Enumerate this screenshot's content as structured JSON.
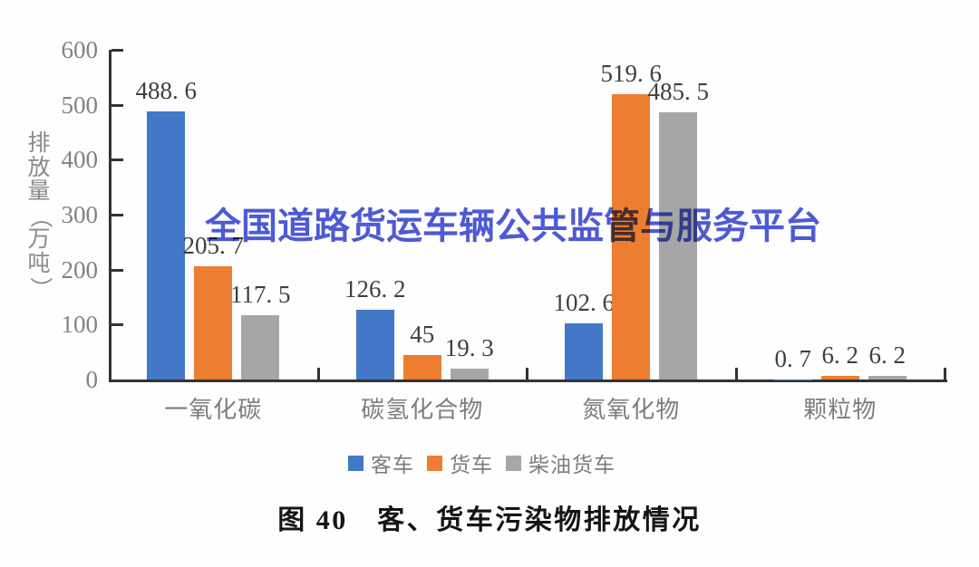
{
  "watermark": {
    "text": "全国道路货运车辆公共监管与服务平台",
    "color": "#3E4CD3"
  },
  "caption": {
    "text": "图 40　客、货车污染物排放情况"
  },
  "chart_data": {
    "type": "bar",
    "title": "",
    "xlabel": "",
    "ylabel": "排放量（万吨）",
    "categories": [
      "一氧化碳",
      "碳氢化合物",
      "氮氧化物",
      "颗粒物"
    ],
    "series": [
      {
        "name": "客车",
        "color": "#4377C8",
        "values": [
          488.6,
          126.2,
          102.6,
          0.7
        ]
      },
      {
        "name": "货车",
        "color": "#ED7D31",
        "values": [
          205.7,
          45,
          519.6,
          6.2
        ]
      },
      {
        "name": "柴油货车",
        "color": "#A6A6A6",
        "values": [
          117.5,
          19.3,
          485.5,
          6.2
        ]
      }
    ],
    "data_labels": [
      [
        "488. 6",
        "126. 2",
        "102. 6",
        "0. 7"
      ],
      [
        "205. 7",
        "45",
        "519. 6",
        "6. 2"
      ],
      [
        "117. 5",
        "19. 3",
        "485. 5",
        "6. 2"
      ]
    ],
    "ylim": [
      0,
      600
    ],
    "yticks": [
      0,
      100,
      200,
      300,
      400,
      500,
      600
    ],
    "grid": false,
    "legend_position": "bottom",
    "axis_color": "#333333",
    "tick_label_color": "#828282",
    "data_label_color": "#3f3f3f"
  }
}
